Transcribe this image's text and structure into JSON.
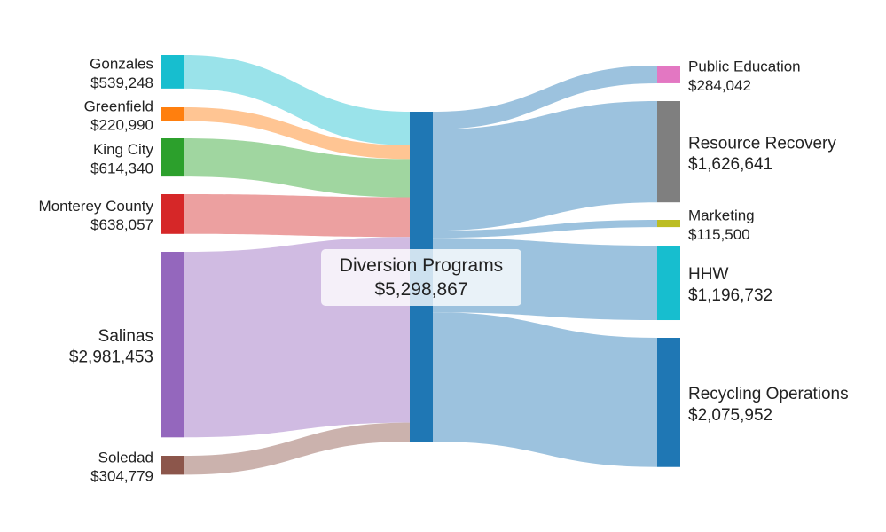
{
  "chart_data": {
    "type": "sankey",
    "title": "",
    "sources": [
      {
        "name": "Gonzales",
        "label": "$539,248",
        "value": 539248,
        "color": "#17becf",
        "link_color": "#9ae3ea"
      },
      {
        "name": "Greenfield",
        "label": "$220,990",
        "value": 220990,
        "color": "#ff7f0e",
        "link_color": "#ffc593"
      },
      {
        "name": "King City",
        "label": "$614,340",
        "value": 614340,
        "color": "#2ca02c",
        "link_color": "#a0d6a0"
      },
      {
        "name": "Monterey County",
        "label": "$638,057",
        "value": 638057,
        "color": "#d62728",
        "link_color": "#eca0a0"
      },
      {
        "name": "Salinas",
        "label": "$2,981,453",
        "value": 2981453,
        "color": "#9467bd",
        "link_color": "#d0bbe2"
      },
      {
        "name": "Soledad",
        "label": "$304,779",
        "value": 304779,
        "color": "#8c564b",
        "link_color": "#cbb2ad"
      }
    ],
    "center": {
      "name": "Diversion Programs",
      "label": "$5,298,867",
      "value": 5298867,
      "color": "#1f77b4"
    },
    "targets": [
      {
        "name": "Public Education",
        "label": "$284,042",
        "value": 284042,
        "color": "#e377c2"
      },
      {
        "name": "Resource Recovery",
        "label": "$1,626,641",
        "value": 1626641,
        "color": "#7f7f7f"
      },
      {
        "name": "Marketing",
        "label": "$115,500",
        "value": 115500,
        "color": "#bcbd22"
      },
      {
        "name": "HHW",
        "label": "$1,196,732",
        "value": 1196732,
        "color": "#17becf"
      },
      {
        "name": "Recycling Operations",
        "label": "$2,075,952",
        "value": 2075952,
        "color": "#1f77b4"
      }
    ],
    "outflow_link_color": "#9cc2de"
  }
}
